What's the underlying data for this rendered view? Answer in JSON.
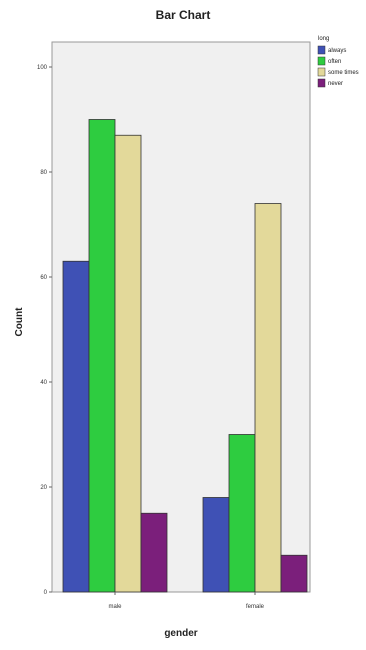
{
  "chart_data": {
    "type": "bar",
    "title": "Bar Chart",
    "xlabel": "gender",
    "ylabel": "Count",
    "categories": [
      "male",
      "female"
    ],
    "series": [
      {
        "name": "always",
        "color": "#3f51b5",
        "values": [
          63,
          18
        ]
      },
      {
        "name": "often",
        "color": "#2ecc40",
        "values": [
          90,
          30
        ]
      },
      {
        "name": "some times",
        "color": "#e3d99a",
        "values": [
          87,
          74
        ]
      },
      {
        "name": "never",
        "color": "#7b1f7b",
        "values": [
          15,
          7
        ]
      }
    ],
    "ylim": [
      0,
      100
    ],
    "yticks": [
      0,
      20,
      40,
      60,
      80,
      100
    ],
    "legend": {
      "title": "long",
      "position": "right"
    },
    "plot_background": "#f0f0f0",
    "grid": false
  }
}
